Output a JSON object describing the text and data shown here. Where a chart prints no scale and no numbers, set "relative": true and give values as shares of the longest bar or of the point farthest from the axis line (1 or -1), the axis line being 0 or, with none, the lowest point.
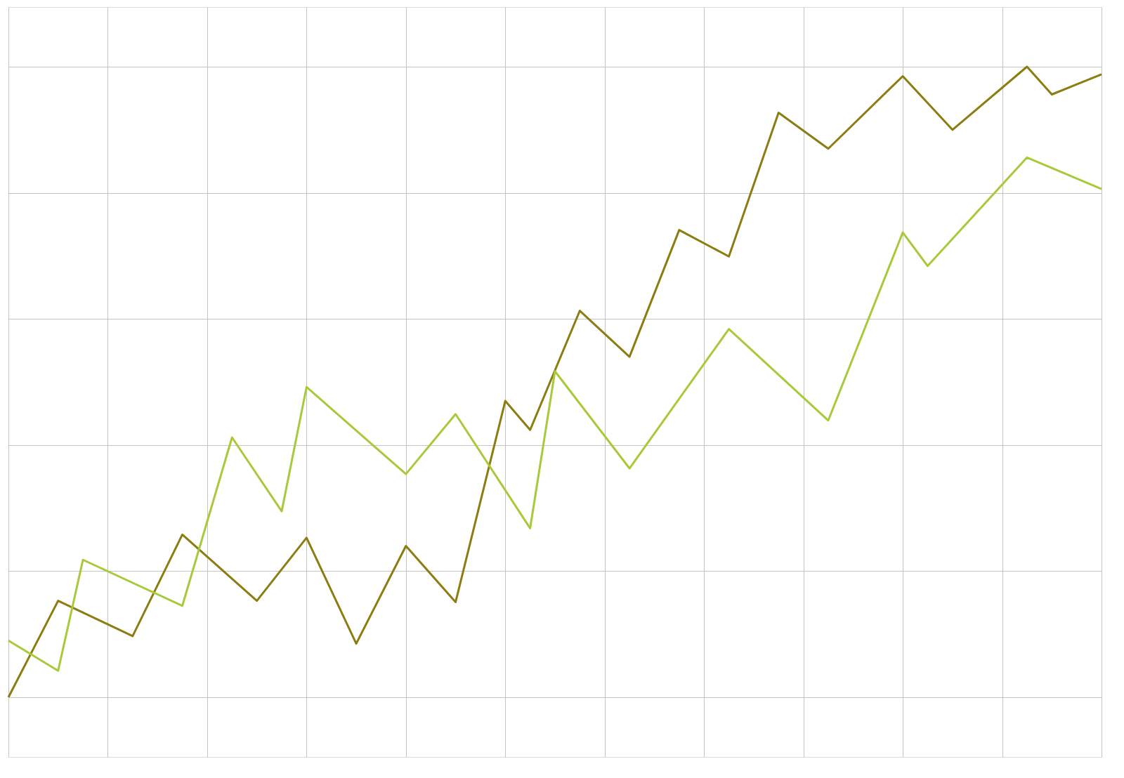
{
  "chart_data": {
    "type": "line",
    "relative": true,
    "grid": true,
    "tick_labels": false,
    "marker": "none",
    "line_style": "solid",
    "categories": [
      null,
      null,
      null,
      null,
      null,
      null,
      null,
      null,
      null,
      null,
      null,
      null,
      null,
      null,
      null,
      null,
      null,
      null,
      null,
      null,
      null,
      null,
      null,
      null,
      null,
      null,
      null,
      null,
      null,
      null,
      null,
      null,
      null,
      null,
      null,
      null,
      null,
      null,
      null,
      null,
      null,
      null,
      null,
      null,
      null
    ],
    "series": [
      {
        "color": "#8b7d12",
        "values": [
          0,
          null,
          0.153,
          null,
          null,
          0.097,
          null,
          0.258,
          null,
          null,
          0.153,
          null,
          0.253,
          null,
          0.085,
          null,
          0.24,
          null,
          0.151,
          null,
          0.47,
          0.424,
          null,
          0.613,
          null,
          0.54,
          null,
          0.741,
          null,
          0.699,
          null,
          0.927,
          null,
          0.87,
          null,
          null,
          0.985,
          null,
          0.9,
          null,
          null,
          1.0,
          0.956,
          null,
          0.988
        ]
      },
      {
        "color": "#a8c93a",
        "values": [
          0.09,
          null,
          0.042,
          0.218,
          null,
          null,
          null,
          0.145,
          null,
          0.412,
          null,
          0.295,
          0.492,
          null,
          null,
          null,
          0.354,
          null,
          0.449,
          null,
          null,
          0.268,
          0.517,
          null,
          null,
          0.363,
          null,
          null,
          null,
          0.584,
          null,
          null,
          null,
          0.439,
          null,
          null,
          0.737,
          0.684,
          null,
          null,
          null,
          0.856,
          null,
          null,
          0.806
        ]
      }
    ]
  }
}
